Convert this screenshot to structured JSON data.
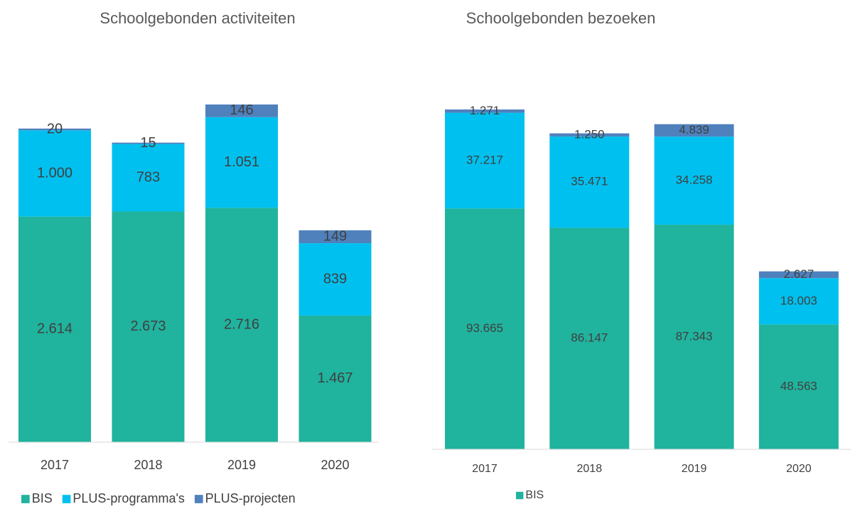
{
  "chart_data": [
    {
      "type": "bar",
      "stacked": true,
      "title": "Schoolgebonden activiteiten",
      "categories": [
        "2017",
        "2018",
        "2019",
        "2020"
      ],
      "series": [
        {
          "name": "BIS",
          "color": "#20b39e",
          "values": [
            2614,
            2673,
            2716,
            1467
          ],
          "value_labels": [
            "2.614",
            "2.673",
            "2.716",
            "1.467"
          ]
        },
        {
          "name": "PLUS-programma's",
          "color": "#00c0ef",
          "values": [
            1000,
            783,
            1051,
            839
          ],
          "value_labels": [
            "1.000",
            "783",
            "1.051",
            "839"
          ]
        },
        {
          "name": "PLUS-projecten",
          "color": "#4f81bd",
          "values": [
            20,
            15,
            146,
            149
          ],
          "value_labels": [
            "20",
            "15",
            "146",
            "149"
          ]
        }
      ],
      "legend": "bottom"
    },
    {
      "type": "bar",
      "stacked": true,
      "title": "Schoolgebonden bezoeken",
      "categories": [
        "2017",
        "2018",
        "2019",
        "2020"
      ],
      "series": [
        {
          "name": "BIS",
          "color": "#20b39e",
          "values": [
            93665,
            86147,
            87343,
            48563
          ],
          "value_labels": [
            "93.665",
            "86.147",
            "87.343",
            "48.563"
          ]
        },
        {
          "color": "#00c0ef",
          "values": [
            37217,
            35471,
            34258,
            18003
          ],
          "value_labels": [
            "37.217",
            "35.471",
            "34.258",
            "18.003"
          ]
        },
        {
          "color": "#4f81bd",
          "values": [
            1271,
            1250,
            4839,
            2627
          ],
          "value_labels": [
            "1.271",
            "1.250",
            "4.839",
            "2.627"
          ]
        }
      ],
      "legend": "bottom"
    }
  ]
}
